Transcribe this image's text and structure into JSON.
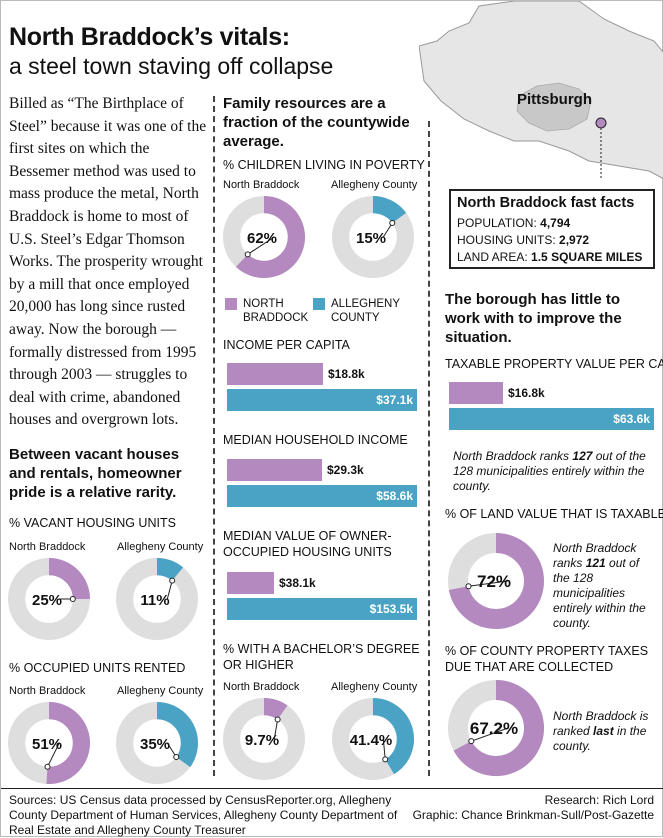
{
  "title": "North Braddock’s vitals:",
  "subtitle": "a steel town staving off collapse",
  "intro": "Billed as “The Birthplace of Steel” because it was one of the first sites on which the Bessemer method was used to mass produce the metal, North Braddock is home to most of U.S. Steel’s Edgar Thomson Works. The prosperity wrought by a mill that once employed 20,000 has long since rusted away. Now the borough — formally distressed from 1995 through 2003 — struggles to deal with crime, abandoned houses and overgrown lots.",
  "section_housing": "Between vacant houses and rentals, homeowner pride is a relative rarity.",
  "section_family": "Family resources are a fraction of the countywide average.",
  "section_borough": "The borough has little to work with to improve the situation.",
  "map_label": "Pittsburgh",
  "facts": {
    "title": "North Braddock fast facts",
    "population_label": "POPULATION:",
    "population_value": "4,794",
    "housing_label": "HOUSING UNITS:",
    "housing_value": "2,972",
    "area_label": "LAND AREA:",
    "area_value": "1.5 SQUARE MILES"
  },
  "legend": {
    "nb": "NORTH BRADDOCK",
    "ac": "ALLEGHENY COUNTY"
  },
  "colors": {
    "north_braddock": "#b489c0",
    "allegheny": "#4aa3c4",
    "track": "#dedede"
  },
  "chart_data": [
    {
      "type": "pie",
      "title": "% CHILDREN LIVING IN POVERTY",
      "categories": [
        "North Braddock",
        "Allegheny County"
      ],
      "values": [
        62,
        15
      ],
      "labels": [
        "62%",
        "15%"
      ]
    },
    {
      "type": "pie",
      "title": "% VACANT HOUSING UNITS",
      "categories": [
        "North Braddock",
        "Allegheny County"
      ],
      "values": [
        25,
        11
      ],
      "labels": [
        "25%",
        "11%"
      ]
    },
    {
      "type": "pie",
      "title": "% OCCUPIED UNITS RENTED",
      "categories": [
        "North Braddock",
        "Allegheny County"
      ],
      "values": [
        51,
        35
      ],
      "labels": [
        "51%",
        "35%"
      ]
    },
    {
      "type": "pie",
      "title": "% WITH A BACHELOR’S DEGREE OR HIGHER",
      "categories": [
        "North Braddock",
        "Allegheny County"
      ],
      "values": [
        9.7,
        41.4
      ],
      "labels": [
        "9.7%",
        "41.4%"
      ]
    },
    {
      "type": "bar",
      "title": "INCOME PER CAPITA",
      "categories": [
        "North Braddock",
        "Allegheny County"
      ],
      "values": [
        18.8,
        37.1
      ],
      "labels": [
        "$18.8k",
        "$37.1k"
      ]
    },
    {
      "type": "bar",
      "title": "MEDIAN HOUSEHOLD INCOME",
      "categories": [
        "North Braddock",
        "Allegheny County"
      ],
      "values": [
        29.3,
        58.6
      ],
      "labels": [
        "$29.3k",
        "$58.6k"
      ]
    },
    {
      "type": "bar",
      "title": "MEDIAN VALUE OF OWNER-OCCUPIED HOUSING UNITS",
      "categories": [
        "North Braddock",
        "Allegheny County"
      ],
      "values": [
        38.1,
        153.5
      ],
      "labels": [
        "$38.1k",
        "$153.5k"
      ]
    },
    {
      "type": "bar",
      "title": "TAXABLE PROPERTY VALUE PER CAPITA",
      "categories": [
        "North Braddock",
        "Allegheny County"
      ],
      "values": [
        16.8,
        63.6
      ],
      "labels": [
        "$16.8k",
        "$63.6k"
      ]
    },
    {
      "type": "pie",
      "title": "% OF LAND VALUE THAT IS TAXABLE",
      "categories": [
        "North Braddock"
      ],
      "values": [
        72
      ],
      "labels": [
        "72%"
      ]
    },
    {
      "type": "pie",
      "title": "% OF COUNTY PROPERTY TAXES DUE THAT ARE COLLECTED",
      "categories": [
        "North Braddock"
      ],
      "values": [
        67.2
      ],
      "labels": [
        "67.2%"
      ]
    }
  ],
  "notes": {
    "rank_taxable_pre": "North Braddock ranks ",
    "rank_taxable_num": "127",
    "rank_taxable_post": " out of the 128 municipalities entirely within the county.",
    "rank_land_pre": "North Braddock ranks ",
    "rank_land_num": "121",
    "rank_land_post": " out of the 128 municipalities entirely within the county.",
    "rank_taxes_pre": "North Braddock is ranked ",
    "rank_taxes_num": "last",
    "rank_taxes_post": " in the county."
  },
  "sources": "Sources: US Census data processed by CensusReporter.org, Allegheny County Department of Human Services, Allegheny County Department of Real Estate and Allegheny County Treasurer",
  "research": "Research: Rich Lord",
  "graphic": "Graphic: Chance Brinkman-Sull/Post-Gazette"
}
